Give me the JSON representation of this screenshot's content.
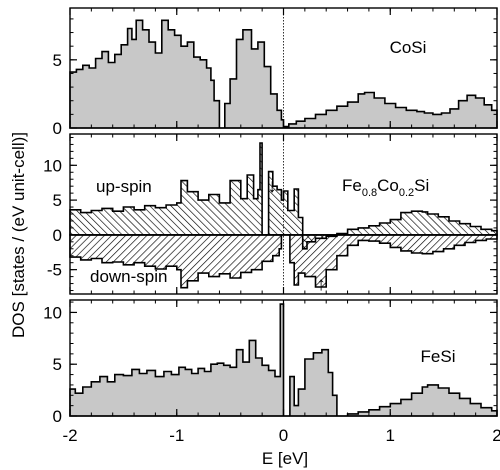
{
  "chart_data": [
    {
      "type": "area",
      "panel": "CoSi",
      "label": "CoSi",
      "ylim": [
        0,
        8.8
      ],
      "yticks": [
        "0",
        "5"
      ],
      "series": [
        {
          "x": [
            -2.0,
            -1.94,
            -1.88,
            -1.82,
            -1.76,
            -1.7,
            -1.64,
            -1.58,
            -1.52,
            -1.46,
            -1.42,
            -1.38,
            -1.32,
            -1.26,
            -1.2,
            -1.14,
            -1.08,
            -1.02,
            -0.96,
            -0.9,
            -0.84,
            -0.78,
            -0.72,
            -0.68,
            -0.65,
            -0.6,
            -0.55,
            -0.5,
            -0.44,
            -0.38,
            -0.3,
            -0.24,
            -0.18,
            -0.12,
            -0.06,
            -0.02,
            0.0,
            0.05,
            0.12,
            0.2,
            0.3,
            0.4,
            0.5,
            0.6,
            0.7,
            0.76,
            0.85,
            0.95,
            1.05,
            1.15,
            1.25,
            1.32,
            1.4,
            1.48,
            1.56,
            1.64,
            1.72,
            1.8,
            1.88,
            1.95,
            2.0
          ],
          "y": [
            4.1,
            4.3,
            4.6,
            4.4,
            5.1,
            5.6,
            4.8,
            5.4,
            6.1,
            7.3,
            6.5,
            7.9,
            7.2,
            6.3,
            5.5,
            7.9,
            7.2,
            6.8,
            6.0,
            6.3,
            5.2,
            5.0,
            4.4,
            3.5,
            2.0,
            0.0,
            1.8,
            3.6,
            6.5,
            7.2,
            5.8,
            6.3,
            4.5,
            2.5,
            1.3,
            0.6,
            0.1,
            0.3,
            0.5,
            0.7,
            1.0,
            1.3,
            1.6,
            1.9,
            2.5,
            2.6,
            2.2,
            1.8,
            1.5,
            1.3,
            1.2,
            1.1,
            1.0,
            1.1,
            1.4,
            2.0,
            2.4,
            2.2,
            1.7,
            1.3,
            1.2
          ]
        }
      ]
    },
    {
      "type": "area",
      "panel": "Fe0.8Co0.2Si",
      "label": {
        "main": "Fe",
        "s1": "0.8",
        "mid": "Co",
        "s2": "0.2",
        "end": "Si"
      },
      "ylim": [
        -8.5,
        14.5
      ],
      "yticks": [
        "-5",
        "0",
        "5",
        "10"
      ],
      "annotations": {
        "up_spin": "up-spin",
        "down_spin": "down-spin",
        "arrow_down": "↓",
        "arrow_up": "↑"
      },
      "series": [
        {
          "name": "up-spin",
          "x": [
            -2.0,
            -1.9,
            -1.8,
            -1.7,
            -1.6,
            -1.5,
            -1.4,
            -1.3,
            -1.2,
            -1.1,
            -1.0,
            -0.96,
            -0.9,
            -0.8,
            -0.7,
            -0.6,
            -0.5,
            -0.4,
            -0.34,
            -0.28,
            -0.24,
            -0.22,
            -0.2,
            -0.18,
            -0.14,
            -0.1,
            -0.06,
            -0.02,
            0.0,
            0.04,
            0.1,
            0.14,
            0.18,
            0.22,
            0.3,
            0.4,
            0.5,
            0.6,
            0.7,
            0.8,
            0.9,
            1.0,
            1.1,
            1.2,
            1.3,
            1.35,
            1.45,
            1.55,
            1.65,
            1.75,
            1.85,
            1.95,
            2.0
          ],
          "y": [
            3.6,
            3.2,
            3.5,
            3.8,
            3.4,
            4.0,
            3.6,
            4.2,
            3.9,
            4.3,
            4.6,
            7.8,
            6.2,
            5.0,
            5.8,
            4.6,
            7.8,
            5.2,
            8.6,
            5.2,
            6.5,
            13.2,
            0.0,
            0.0,
            9.1,
            7.0,
            6.5,
            5.0,
            6.3,
            3.5,
            6.6,
            2.5,
            -2.0,
            -1.0,
            -0.5,
            -0.2,
            0.2,
            0.8,
            1.0,
            1.3,
            1.7,
            2.2,
            3.2,
            3.4,
            3.3,
            3.0,
            2.6,
            2.0,
            1.6,
            1.2,
            0.8,
            0.6,
            0.5
          ]
        },
        {
          "name": "down-spin",
          "x": [
            -2.0,
            -1.9,
            -1.8,
            -1.7,
            -1.6,
            -1.5,
            -1.4,
            -1.3,
            -1.2,
            -1.1,
            -1.0,
            -0.96,
            -0.9,
            -0.8,
            -0.7,
            -0.6,
            -0.5,
            -0.4,
            -0.3,
            -0.2,
            -0.1,
            -0.04,
            -0.02,
            0.0,
            0.06,
            0.1,
            0.14,
            0.2,
            0.3,
            0.4,
            0.5,
            0.6,
            0.7,
            0.8,
            0.9,
            1.0,
            1.1,
            1.2,
            1.3,
            1.4,
            1.5,
            1.6,
            1.7,
            1.8,
            1.9,
            2.0
          ],
          "y": [
            -3.2,
            -3.6,
            -3.4,
            -4.0,
            -3.9,
            -4.3,
            -4.0,
            -4.5,
            -4.9,
            -4.5,
            -5.0,
            -7.6,
            -6.6,
            -5.5,
            -6.0,
            -5.6,
            -6.2,
            -5.4,
            -5.0,
            -3.8,
            -3.0,
            -2.0,
            0.0,
            0.0,
            -4.0,
            -7.2,
            -5.5,
            -6.0,
            -7.5,
            -5.0,
            -3.0,
            -1.5,
            -0.8,
            -0.9,
            -1.2,
            -1.8,
            -2.3,
            -2.6,
            -2.7,
            -2.4,
            -2.0,
            -1.5,
            -1.1,
            -0.8,
            -0.6,
            -0.5
          ]
        }
      ]
    },
    {
      "type": "area",
      "panel": "FeSi",
      "label": "FeSi",
      "ylim": [
        0,
        11.2
      ],
      "yticks": [
        "0",
        "5",
        "10"
      ],
      "series": [
        {
          "x": [
            -2.0,
            -1.95,
            -1.88,
            -1.8,
            -1.72,
            -1.65,
            -1.58,
            -1.5,
            -1.42,
            -1.35,
            -1.28,
            -1.2,
            -1.12,
            -1.05,
            -0.98,
            -0.92,
            -0.86,
            -0.8,
            -0.74,
            -0.68,
            -0.62,
            -0.56,
            -0.5,
            -0.44,
            -0.38,
            -0.32,
            -0.26,
            -0.2,
            -0.14,
            -0.08,
            -0.03,
            0.0,
            0.02,
            0.06,
            0.1,
            0.14,
            0.2,
            0.28,
            0.36,
            0.42,
            0.46,
            0.5,
            0.6,
            0.7,
            0.8,
            0.9,
            1.0,
            1.1,
            1.2,
            1.3,
            1.35,
            1.45,
            1.55,
            1.65,
            1.75,
            1.85,
            1.95,
            2.0
          ],
          "y": [
            2.6,
            2.2,
            2.8,
            3.3,
            3.8,
            3.3,
            4.0,
            3.9,
            4.5,
            4.1,
            4.4,
            3.8,
            4.3,
            4.0,
            4.7,
            4.5,
            4.1,
            4.6,
            4.3,
            5.0,
            5.1,
            4.9,
            4.7,
            6.4,
            5.2,
            7.3,
            5.6,
            4.9,
            4.4,
            3.8,
            10.8,
            0.0,
            0.0,
            3.8,
            1.0,
            2.6,
            5.5,
            6.1,
            6.4,
            4.2,
            2.0,
            0.0,
            0.2,
            0.4,
            0.6,
            0.9,
            1.2,
            1.6,
            2.2,
            2.8,
            3.0,
            2.7,
            2.2,
            1.7,
            1.2,
            0.8,
            0.5,
            0.4
          ]
        }
      ]
    }
  ],
  "axes": {
    "xlabel": "E [eV]",
    "ylabel": "DOS [states / (eV unit-cell)]",
    "xlim": [
      -2,
      2
    ],
    "xticks": [
      "-2",
      "-1",
      "0",
      "1",
      "2"
    ]
  }
}
